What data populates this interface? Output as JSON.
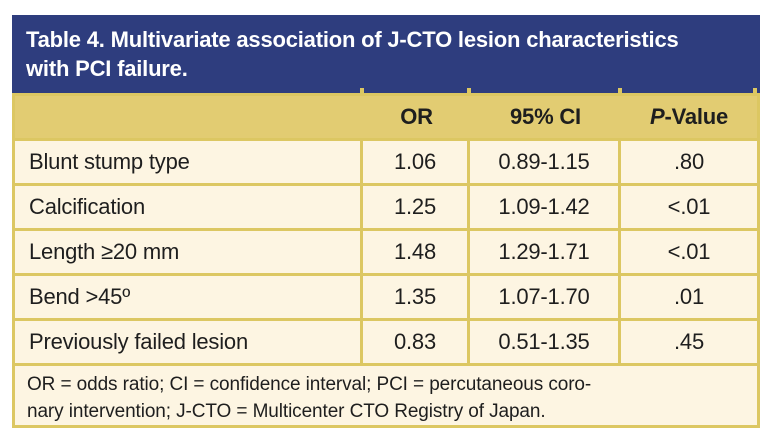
{
  "title": "Table 4. Multivariate association of J-CTO lesion characteristics\nwith PCI failure.",
  "colors": {
    "title_bar_blue": "#2e3d7e",
    "header_gold": "#e2cc72",
    "border_gold": "#dcc762",
    "row_cream": "#fdf5e2",
    "title_text": "#ffffff",
    "body_text": "#1e1e1e"
  },
  "columns": {
    "or_label": "OR",
    "ci_label": "95% CI",
    "p_label_italic_part": "P",
    "p_label_rest": "-Value"
  },
  "rows": [
    {
      "label": "Blunt stump type",
      "or": "1.06",
      "ci": "0.89-1.15",
      "p": ".80"
    },
    {
      "label": "Calcification",
      "or": "1.25",
      "ci": "1.09-1.42",
      "p": "<.01"
    },
    {
      "label": "Length ≥20 mm",
      "or": "1.48",
      "ci": "1.29-1.71",
      "p": "<.01"
    },
    {
      "label": "Bend >45º",
      "or": "1.35",
      "ci": "1.07-1.70",
      "p": ".01"
    },
    {
      "label": "Previously failed lesion",
      "or": "0.83",
      "ci": "0.51-1.35",
      "p": ".45"
    }
  ],
  "footnote": "OR = odds ratio; CI = confidence interval; PCI = percutaneous coro-\nnary intervention; J-CTO = Multicenter CTO Registry of Japan."
}
